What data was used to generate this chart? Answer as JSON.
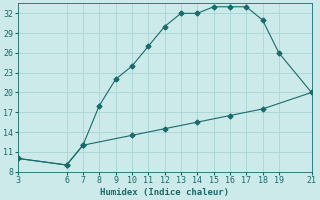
{
  "xlabel": "Humidex (Indice chaleur)",
  "bg_color": "#cceaea",
  "line_color": "#1a6b6b",
  "grid_color": "#aad4d4",
  "x_upper": [
    3,
    6,
    7,
    8,
    9,
    10,
    11,
    12,
    13,
    14,
    15,
    16,
    17,
    18,
    19,
    21
  ],
  "y_upper": [
    10,
    9,
    12,
    18,
    22,
    24,
    27,
    30,
    32,
    32,
    33,
    33,
    33,
    31,
    26,
    20
  ],
  "x_lower": [
    3,
    6,
    7,
    10,
    12,
    14,
    16,
    18,
    21
  ],
  "y_lower": [
    10,
    9,
    12,
    13.5,
    14.5,
    15.5,
    16.5,
    17.5,
    20
  ],
  "xlim": [
    3,
    21
  ],
  "ylim": [
    8,
    33.5
  ],
  "xticks": [
    3,
    6,
    7,
    8,
    9,
    10,
    11,
    12,
    13,
    14,
    15,
    16,
    17,
    18,
    19,
    21
  ],
  "yticks": [
    8,
    11,
    14,
    17,
    20,
    23,
    26,
    29,
    32
  ],
  "marker": "D",
  "marker_size": 2.5,
  "label_fontsize": 6.5,
  "tick_fontsize": 6
}
